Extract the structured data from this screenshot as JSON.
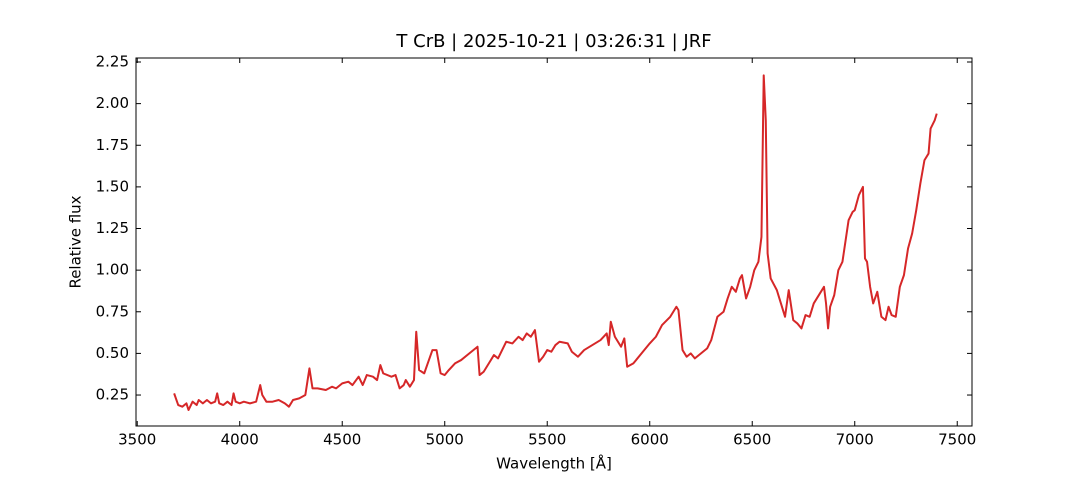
{
  "chart_data": {
    "type": "line",
    "title": "T CrB | 2025-10-21 | 03:26:31 | JRF",
    "x_label": "Wavelength [Å]",
    "y_label": "Relative flux",
    "color": "#d62728",
    "x": [
      3680,
      3700,
      3720,
      3740,
      3750,
      3770,
      3790,
      3800,
      3820,
      3840,
      3860,
      3880,
      3890,
      3900,
      3920,
      3940,
      3960,
      3970,
      3980,
      4000,
      4020,
      4050,
      4080,
      4100,
      4110,
      4130,
      4160,
      4190,
      4220,
      4240,
      4260,
      4290,
      4320,
      4340,
      4355,
      4380,
      4420,
      4450,
      4470,
      4500,
      4530,
      4550,
      4580,
      4600,
      4620,
      4650,
      4670,
      4686,
      4700,
      4740,
      4760,
      4780,
      4800,
      4810,
      4830,
      4850,
      4861,
      4875,
      4900,
      4920,
      4940,
      4960,
      4980,
      5000,
      5020,
      5050,
      5080,
      5120,
      5160,
      5170,
      5190,
      5220,
      5240,
      5260,
      5300,
      5330,
      5360,
      5380,
      5400,
      5420,
      5440,
      5460,
      5480,
      5500,
      5520,
      5540,
      5560,
      5600,
      5620,
      5650,
      5680,
      5720,
      5760,
      5790,
      5800,
      5810,
      5830,
      5860,
      5876,
      5890,
      5920,
      5960,
      6000,
      6030,
      6060,
      6100,
      6130,
      6140,
      6160,
      6180,
      6200,
      6220,
      6250,
      6280,
      6300,
      6330,
      6360,
      6380,
      6400,
      6420,
      6440,
      6450,
      6470,
      6490,
      6510,
      6530,
      6545,
      6556,
      6566,
      6575,
      6590,
      6620,
      6640,
      6660,
      6678,
      6700,
      6720,
      6740,
      6760,
      6780,
      6800,
      6830,
      6850,
      6860,
      6870,
      6880,
      6900,
      6920,
      6940,
      6970,
      6990,
      7000,
      7020,
      7040,
      7050,
      7060,
      7075,
      7090,
      7110,
      7130,
      7150,
      7165,
      7180,
      7200,
      7220,
      7240,
      7260,
      7280,
      7300,
      7320,
      7340,
      7360,
      7370,
      7390,
      7400
    ],
    "values": [
      0.26,
      0.19,
      0.18,
      0.2,
      0.16,
      0.21,
      0.19,
      0.22,
      0.2,
      0.22,
      0.2,
      0.21,
      0.26,
      0.2,
      0.19,
      0.21,
      0.19,
      0.26,
      0.21,
      0.2,
      0.21,
      0.2,
      0.21,
      0.31,
      0.25,
      0.21,
      0.21,
      0.22,
      0.2,
      0.18,
      0.22,
      0.23,
      0.25,
      0.41,
      0.29,
      0.29,
      0.28,
      0.3,
      0.29,
      0.32,
      0.33,
      0.31,
      0.36,
      0.31,
      0.37,
      0.36,
      0.34,
      0.43,
      0.38,
      0.36,
      0.37,
      0.29,
      0.31,
      0.34,
      0.3,
      0.34,
      0.63,
      0.4,
      0.38,
      0.45,
      0.52,
      0.52,
      0.38,
      0.37,
      0.4,
      0.44,
      0.46,
      0.5,
      0.54,
      0.37,
      0.39,
      0.45,
      0.49,
      0.47,
      0.57,
      0.56,
      0.6,
      0.58,
      0.62,
      0.6,
      0.64,
      0.45,
      0.48,
      0.52,
      0.51,
      0.55,
      0.57,
      0.56,
      0.51,
      0.48,
      0.52,
      0.55,
      0.58,
      0.62,
      0.55,
      0.69,
      0.6,
      0.54,
      0.59,
      0.42,
      0.44,
      0.5,
      0.56,
      0.6,
      0.67,
      0.72,
      0.78,
      0.76,
      0.52,
      0.48,
      0.5,
      0.47,
      0.5,
      0.53,
      0.58,
      0.72,
      0.75,
      0.83,
      0.9,
      0.87,
      0.95,
      0.97,
      0.83,
      0.9,
      1.0,
      1.05,
      1.2,
      2.17,
      1.9,
      1.1,
      0.95,
      0.88,
      0.8,
      0.72,
      0.88,
      0.7,
      0.68,
      0.65,
      0.73,
      0.72,
      0.8,
      0.86,
      0.9,
      0.8,
      0.65,
      0.78,
      0.85,
      1.0,
      1.05,
      1.3,
      1.35,
      1.36,
      1.45,
      1.5,
      1.07,
      1.05,
      0.9,
      0.8,
      0.87,
      0.72,
      0.7,
      0.78,
      0.73,
      0.72,
      0.9,
      0.97,
      1.13,
      1.22,
      1.36,
      1.52,
      1.66,
      1.7,
      1.85,
      1.9,
      1.94
    ],
    "xlim": [
      3494,
      7572
    ],
    "ylim": [
      0.064,
      2.274
    ],
    "xticks": [
      3500,
      4000,
      4500,
      5000,
      5500,
      6000,
      6500,
      7000,
      7500
    ],
    "yticks": [
      0.25,
      {
        "value": 0.5,
        "label": "0.50"
      },
      0.75,
      {
        "value": 1.0,
        "label": "1.00"
      },
      1.25,
      {
        "value": 1.5,
        "label": "1.50"
      },
      1.75,
      {
        "value": 2.0,
        "label": "2.00"
      },
      2.25
    ]
  }
}
